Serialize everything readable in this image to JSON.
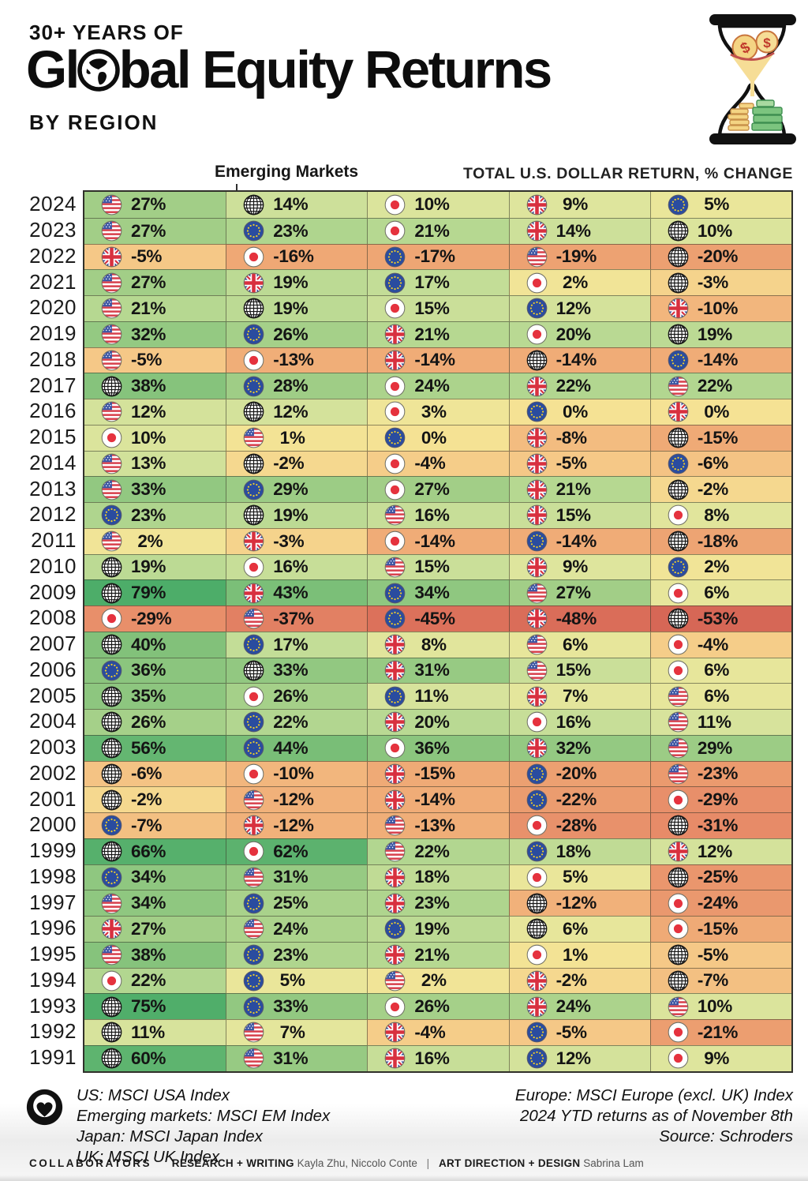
{
  "header": {
    "kicker": "30+ YEARS OF",
    "title_left": "Gl",
    "title_right": "bal Equity Returns",
    "subtitle": "BY REGION"
  },
  "annotations": {
    "em_label": "Emerging Markets",
    "right_label": "TOTAL U.S. DOLLAR RETURN, % CHANGE"
  },
  "icons": {
    "title_globe": "globe-icon",
    "hourglass": "hourglass-money-icon",
    "logo": "visual-capitalist-logo-icon",
    "us": "us-flag-icon",
    "em": "emerging-markets-globe-icon",
    "jp": "japan-flag-icon",
    "uk": "uk-flag-icon",
    "eu": "europe-flag-icon"
  },
  "color_scale": [
    [
      -53,
      "#d66756"
    ],
    [
      -45,
      "#dc715b"
    ],
    [
      -37,
      "#e28063"
    ],
    [
      -29,
      "#e88f6a"
    ],
    [
      -22,
      "#eb9c6f"
    ],
    [
      -17,
      "#eea674"
    ],
    [
      -13,
      "#f0ae78"
    ],
    [
      -9,
      "#f2b97e"
    ],
    [
      -6,
      "#f4c384"
    ],
    [
      -4,
      "#f5cd89"
    ],
    [
      -2,
      "#f5d88f"
    ],
    [
      0,
      "#f5e294"
    ],
    [
      3,
      "#efe598"
    ],
    [
      6,
      "#e7e69b"
    ],
    [
      9,
      "#dee59d"
    ],
    [
      12,
      "#d4e29b"
    ],
    [
      15,
      "#cadf99"
    ],
    [
      19,
      "#bcda94"
    ],
    [
      23,
      "#afd58e"
    ],
    [
      27,
      "#a2ce87"
    ],
    [
      32,
      "#94c982"
    ],
    [
      38,
      "#86c37c"
    ],
    [
      45,
      "#77bd76"
    ],
    [
      56,
      "#64b671"
    ],
    [
      66,
      "#56b06c"
    ],
    [
      79,
      "#4dad69"
    ]
  ],
  "chart_data": {
    "type": "heatmap",
    "title": "30+ Years of Global Equity Returns by Region",
    "unit": "Total U.S. dollar return, % change",
    "column_order": "ranked best to worst within each year",
    "regions": {
      "us": "US",
      "em": "Emerging Markets",
      "jp": "Japan",
      "uk": "UK",
      "eu": "Europe"
    },
    "rows": [
      {
        "year": "2024",
        "cells": [
          [
            "us",
            27
          ],
          [
            "em",
            14
          ],
          [
            "jp",
            10
          ],
          [
            "uk",
            9
          ],
          [
            "eu",
            5
          ]
        ]
      },
      {
        "year": "2023",
        "cells": [
          [
            "us",
            27
          ],
          [
            "eu",
            23
          ],
          [
            "jp",
            21
          ],
          [
            "uk",
            14
          ],
          [
            "em",
            10
          ]
        ]
      },
      {
        "year": "2022",
        "cells": [
          [
            "uk",
            -5
          ],
          [
            "jp",
            -16
          ],
          [
            "eu",
            -17
          ],
          [
            "us",
            -19
          ],
          [
            "em",
            -20
          ]
        ]
      },
      {
        "year": "2021",
        "cells": [
          [
            "us",
            27
          ],
          [
            "uk",
            19
          ],
          [
            "eu",
            17
          ],
          [
            "jp",
            2
          ],
          [
            "em",
            -3
          ]
        ]
      },
      {
        "year": "2020",
        "cells": [
          [
            "us",
            21
          ],
          [
            "em",
            19
          ],
          [
            "jp",
            15
          ],
          [
            "eu",
            12
          ],
          [
            "uk",
            -10
          ]
        ]
      },
      {
        "year": "2019",
        "cells": [
          [
            "us",
            32
          ],
          [
            "eu",
            26
          ],
          [
            "uk",
            21
          ],
          [
            "jp",
            20
          ],
          [
            "em",
            19
          ]
        ]
      },
      {
        "year": "2018",
        "cells": [
          [
            "us",
            -5
          ],
          [
            "jp",
            -13
          ],
          [
            "uk",
            -14
          ],
          [
            "em",
            -14
          ],
          [
            "eu",
            -14
          ]
        ]
      },
      {
        "year": "2017",
        "cells": [
          [
            "em",
            38
          ],
          [
            "eu",
            28
          ],
          [
            "jp",
            24
          ],
          [
            "uk",
            22
          ],
          [
            "us",
            22
          ]
        ]
      },
      {
        "year": "2016",
        "cells": [
          [
            "us",
            12
          ],
          [
            "em",
            12
          ],
          [
            "jp",
            3
          ],
          [
            "eu",
            0
          ],
          [
            "uk",
            0
          ]
        ]
      },
      {
        "year": "2015",
        "cells": [
          [
            "jp",
            10
          ],
          [
            "us",
            1
          ],
          [
            "eu",
            0
          ],
          [
            "uk",
            -8
          ],
          [
            "em",
            -15
          ]
        ]
      },
      {
        "year": "2014",
        "cells": [
          [
            "us",
            13
          ],
          [
            "em",
            -2
          ],
          [
            "jp",
            -4
          ],
          [
            "uk",
            -5
          ],
          [
            "eu",
            -6
          ]
        ]
      },
      {
        "year": "2013",
        "cells": [
          [
            "us",
            33
          ],
          [
            "eu",
            29
          ],
          [
            "jp",
            27
          ],
          [
            "uk",
            21
          ],
          [
            "em",
            -2
          ]
        ]
      },
      {
        "year": "2012",
        "cells": [
          [
            "eu",
            23
          ],
          [
            "em",
            19
          ],
          [
            "us",
            16
          ],
          [
            "uk",
            15
          ],
          [
            "jp",
            8
          ]
        ]
      },
      {
        "year": "2011",
        "cells": [
          [
            "us",
            2
          ],
          [
            "uk",
            -3
          ],
          [
            "jp",
            -14
          ],
          [
            "eu",
            -14
          ],
          [
            "em",
            -18
          ]
        ]
      },
      {
        "year": "2010",
        "cells": [
          [
            "em",
            19
          ],
          [
            "jp",
            16
          ],
          [
            "us",
            15
          ],
          [
            "uk",
            9
          ],
          [
            "eu",
            2
          ]
        ]
      },
      {
        "year": "2009",
        "cells": [
          [
            "em",
            79
          ],
          [
            "uk",
            43
          ],
          [
            "eu",
            34
          ],
          [
            "us",
            27
          ],
          [
            "jp",
            6
          ]
        ]
      },
      {
        "year": "2008",
        "cells": [
          [
            "jp",
            -29
          ],
          [
            "us",
            -37
          ],
          [
            "eu",
            -45
          ],
          [
            "uk",
            -48
          ],
          [
            "em",
            -53
          ]
        ]
      },
      {
        "year": "2007",
        "cells": [
          [
            "em",
            40
          ],
          [
            "eu",
            17
          ],
          [
            "uk",
            8
          ],
          [
            "us",
            6
          ],
          [
            "jp",
            -4
          ]
        ]
      },
      {
        "year": "2006",
        "cells": [
          [
            "eu",
            36
          ],
          [
            "em",
            33
          ],
          [
            "uk",
            31
          ],
          [
            "us",
            15
          ],
          [
            "jp",
            6
          ]
        ]
      },
      {
        "year": "2005",
        "cells": [
          [
            "em",
            35
          ],
          [
            "jp",
            26
          ],
          [
            "eu",
            11
          ],
          [
            "uk",
            7
          ],
          [
            "us",
            6
          ]
        ]
      },
      {
        "year": "2004",
        "cells": [
          [
            "em",
            26
          ],
          [
            "eu",
            22
          ],
          [
            "uk",
            20
          ],
          [
            "jp",
            16
          ],
          [
            "us",
            11
          ]
        ]
      },
      {
        "year": "2003",
        "cells": [
          [
            "em",
            56
          ],
          [
            "eu",
            44
          ],
          [
            "jp",
            36
          ],
          [
            "uk",
            32
          ],
          [
            "us",
            29
          ]
        ]
      },
      {
        "year": "2002",
        "cells": [
          [
            "em",
            -6
          ],
          [
            "jp",
            -10
          ],
          [
            "uk",
            -15
          ],
          [
            "eu",
            -20
          ],
          [
            "us",
            -23
          ]
        ]
      },
      {
        "year": "2001",
        "cells": [
          [
            "em",
            -2
          ],
          [
            "us",
            -12
          ],
          [
            "uk",
            -14
          ],
          [
            "eu",
            -22
          ],
          [
            "jp",
            -29
          ]
        ]
      },
      {
        "year": "2000",
        "cells": [
          [
            "eu",
            -7
          ],
          [
            "uk",
            -12
          ],
          [
            "us",
            -13
          ],
          [
            "jp",
            -28
          ],
          [
            "em",
            -31
          ]
        ]
      },
      {
        "year": "1999",
        "cells": [
          [
            "em",
            66
          ],
          [
            "jp",
            62
          ],
          [
            "us",
            22
          ],
          [
            "eu",
            18
          ],
          [
            "uk",
            12
          ]
        ]
      },
      {
        "year": "1998",
        "cells": [
          [
            "eu",
            34
          ],
          [
            "us",
            31
          ],
          [
            "uk",
            18
          ],
          [
            "jp",
            5
          ],
          [
            "em",
            -25
          ]
        ]
      },
      {
        "year": "1997",
        "cells": [
          [
            "us",
            34
          ],
          [
            "eu",
            25
          ],
          [
            "uk",
            23
          ],
          [
            "em",
            -12
          ],
          [
            "jp",
            -24
          ]
        ]
      },
      {
        "year": "1996",
        "cells": [
          [
            "uk",
            27
          ],
          [
            "us",
            24
          ],
          [
            "eu",
            19
          ],
          [
            "em",
            6
          ],
          [
            "jp",
            -15
          ]
        ]
      },
      {
        "year": "1995",
        "cells": [
          [
            "us",
            38
          ],
          [
            "eu",
            23
          ],
          [
            "uk",
            21
          ],
          [
            "jp",
            1
          ],
          [
            "em",
            -5
          ]
        ]
      },
      {
        "year": "1994",
        "cells": [
          [
            "jp",
            22
          ],
          [
            "eu",
            5
          ],
          [
            "us",
            2
          ],
          [
            "uk",
            -2
          ],
          [
            "em",
            -7
          ]
        ]
      },
      {
        "year": "1993",
        "cells": [
          [
            "em",
            75
          ],
          [
            "eu",
            33
          ],
          [
            "jp",
            26
          ],
          [
            "uk",
            24
          ],
          [
            "us",
            10
          ]
        ]
      },
      {
        "year": "1992",
        "cells": [
          [
            "em",
            11
          ],
          [
            "us",
            7
          ],
          [
            "uk",
            -4
          ],
          [
            "eu",
            -5
          ],
          [
            "jp",
            -21
          ]
        ]
      },
      {
        "year": "1991",
        "cells": [
          [
            "em",
            60
          ],
          [
            "us",
            31
          ],
          [
            "uk",
            16
          ],
          [
            "eu",
            12
          ],
          [
            "jp",
            9
          ]
        ]
      }
    ]
  },
  "footer": {
    "legend_left": [
      "US: MSCI USA Index",
      "Emerging markets: MSCI EM Index",
      "Japan: MSCI Japan Index",
      "UK: MSCI UK Index"
    ],
    "legend_right": [
      "Europe: MSCI Europe (excl. UK) Index",
      "2024 YTD returns as of November 8th",
      "Source: Schroders"
    ],
    "collaborators_label": "COLLABORATORS",
    "research_label": "RESEARCH + WRITING",
    "research_names": "Kayla Zhu, Niccolo Conte",
    "divider": "|",
    "design_label": "ART DIRECTION + DESIGN",
    "design_names": "Sabrina Lam"
  }
}
